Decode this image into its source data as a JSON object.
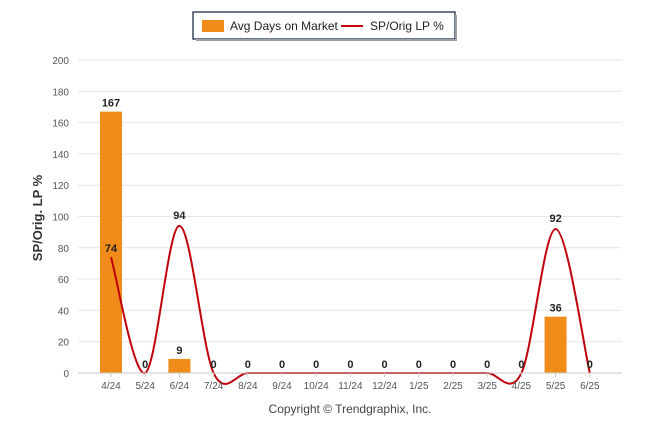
{
  "chart_data": {
    "type": "bar",
    "categories": [
      "4/24",
      "5/24",
      "6/24",
      "7/24",
      "8/24",
      "9/24",
      "10/24",
      "11/24",
      "12/24",
      "1/25",
      "2/25",
      "3/25",
      "4/25",
      "5/25",
      "6/25"
    ],
    "series": [
      {
        "name": "Avg Days on Market",
        "type": "bar",
        "color": "#f08c1a",
        "values": [
          167,
          0,
          9,
          0,
          0,
          0,
          0,
          0,
          0,
          0,
          0,
          0,
          0,
          36,
          0
        ]
      },
      {
        "name": "SP/Orig LP %",
        "type": "line",
        "color": "#c0000a",
        "values": [
          74,
          0,
          94,
          0,
          0,
          0,
          0,
          0,
          0,
          0,
          0,
          0,
          0,
          92,
          0
        ]
      }
    ],
    "ylabel": "SP/Orig. LP %",
    "ylim": [
      0,
      200
    ],
    "yticks": [
      0,
      20,
      40,
      60,
      80,
      100,
      120,
      140,
      160,
      180,
      200
    ],
    "grid": true,
    "legend_position": "top-center"
  },
  "footer": "Copyright © Trendgraphix, Inc."
}
